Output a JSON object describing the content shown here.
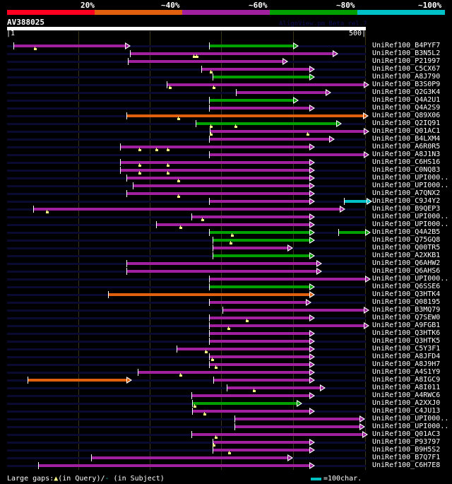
{
  "legend": {
    "labels": [
      "20%",
      "~40%",
      "~60%",
      "~80%",
      "~100%"
    ],
    "colors": [
      "#ff0020",
      "#e06010",
      "#a020a0",
      "#00a000",
      "#00c0c8"
    ]
  },
  "query": {
    "name": "AV388025",
    "start_label": "1",
    "end_label": "500",
    "length": 500
  },
  "credit": "AlignView.pm Beta rel.7",
  "identity_colors": {
    "red": "#ff0020",
    "orange": "#e06010",
    "purple": "#a020a0",
    "green": "#00a000",
    "cyan": "#00c0c8"
  },
  "hits": [
    {
      "label": "UniRef100_B4PYF7",
      "color": "green",
      "qs": 282,
      "qe": 400,
      "extra": [
        {
          "c": "purple",
          "s": 10,
          "e": 165
        }
      ],
      "gaps": [
        40
      ]
    },
    {
      "label": "UniRef100_B3N5L2",
      "color": "purple",
      "qs": 172,
      "qe": 455,
      "gaps": [
        262,
        266
      ]
    },
    {
      "label": "UniRef100_P21997",
      "color": "purple",
      "qs": 169,
      "qe": 385,
      "gaps": []
    },
    {
      "label": "UniRef100_C5CX67",
      "color": "purple",
      "qs": 272,
      "qe": 422,
      "gaps": [
        285
      ]
    },
    {
      "label": "UniRef100_A8J790",
      "color": "green",
      "qs": 287,
      "qe": 422,
      "gaps": []
    },
    {
      "label": "UniRef100_B3S0P9",
      "color": "purple",
      "qs": 223,
      "qe": 498,
      "gaps": [
        228,
        289
      ]
    },
    {
      "label": "UniRef100_Q2G3K4",
      "color": "purple",
      "qs": 320,
      "qe": 445,
      "gaps": []
    },
    {
      "label": "UniRef100_Q4A2U1",
      "color": "green",
      "qs": 282,
      "qe": 400,
      "gaps": []
    },
    {
      "label": "UniRef100_Q4A2S9",
      "color": "purple",
      "qs": 282,
      "qe": 422,
      "gaps": []
    },
    {
      "label": "UniRef100_Q89X06",
      "color": "orange",
      "qs": 167,
      "qe": 497,
      "gaps": [
        240
      ]
    },
    {
      "label": "UniRef100_Q2IQ91",
      "color": "green",
      "qs": 264,
      "qe": 460,
      "gaps": [
        285,
        320
      ]
    },
    {
      "label": "UniRef100_Q01AC1",
      "color": "purple",
      "qs": 283,
      "qe": 498,
      "gaps": [
        285,
        420
      ]
    },
    {
      "label": "UniRef100_B4LXM4",
      "color": "purple",
      "qs": 282,
      "qe": 450,
      "gaps": []
    },
    {
      "label": "UniRef100_A6R0R5",
      "color": "purple",
      "qs": 158,
      "qe": 422,
      "gaps": [
        186,
        210,
        225
      ]
    },
    {
      "label": "UniRef100_A8J1N3",
      "color": "purple",
      "qs": 282,
      "qe": 498,
      "gaps": []
    },
    {
      "label": "UniRef100_C6HS16",
      "color": "purple",
      "qs": 158,
      "qe": 422,
      "gaps": [
        186,
        225
      ]
    },
    {
      "label": "UniRef100_C0NQ83",
      "color": "purple",
      "qs": 158,
      "qe": 422,
      "gaps": [
        186,
        225
      ]
    },
    {
      "label": "UniRef100_UPI000..",
      "color": "purple",
      "qs": 167,
      "qe": 422,
      "gaps": [
        240
      ]
    },
    {
      "label": "UniRef100_UPI000..",
      "color": "purple",
      "qs": 176,
      "qe": 422,
      "gaps": []
    },
    {
      "label": "UniRef100_A7QNX2",
      "color": "purple",
      "qs": 167,
      "qe": 422,
      "gaps": [
        240
      ]
    },
    {
      "label": "UniRef100_C9J4Y2",
      "color": "cyan",
      "qs": 470,
      "qe": 502,
      "extra": [
        {
          "c": "purple",
          "s": 282,
          "e": 422
        }
      ],
      "gaps": []
    },
    {
      "label": "UniRef100_B9QEP3",
      "color": "purple",
      "qs": 37,
      "qe": 465,
      "gaps": [
        57
      ]
    },
    {
      "label": "UniRef100_UPI000..",
      "color": "purple",
      "qs": 258,
      "qe": 422,
      "gaps": [
        274
      ]
    },
    {
      "label": "UniRef100_UPI000..",
      "color": "purple",
      "qs": 209,
      "qe": 422,
      "gaps": [
        243
      ]
    },
    {
      "label": "UniRef100_Q4A2B5",
      "color": "green",
      "qs": 282,
      "qe": 422,
      "extra": [
        {
          "c": "green",
          "s": 463,
          "e": 500
        }
      ],
      "gaps": [
        315
      ]
    },
    {
      "label": "UniRef100_Q75GQ8",
      "color": "green",
      "qs": 287,
      "qe": 422,
      "gaps": [
        313
      ]
    },
    {
      "label": "UniRef100_Q00TR5",
      "color": "purple",
      "qs": 287,
      "qe": 392,
      "gaps": []
    },
    {
      "label": "UniRef100_A2XKB1",
      "color": "green",
      "qs": 287,
      "qe": 422,
      "gaps": []
    },
    {
      "label": "UniRef100_Q6AHW2",
      "color": "purple",
      "qs": 167,
      "qe": 432,
      "gaps": []
    },
    {
      "label": "UniRef100_Q6AHS6",
      "color": "purple",
      "qs": 167,
      "qe": 432,
      "gaps": []
    },
    {
      "label": "UniRef100_UPI000..",
      "color": "purple",
      "qs": 282,
      "qe": 500,
      "gaps": []
    },
    {
      "label": "UniRef100_Q6SSE6",
      "color": "green",
      "qs": 282,
      "qe": 422,
      "gaps": []
    },
    {
      "label": "UniRef100_Q3HTK4",
      "color": "orange",
      "qs": 142,
      "qe": 422,
      "gaps": []
    },
    {
      "label": "UniRef100_Q08195",
      "color": "purple",
      "qs": 282,
      "qe": 417,
      "gaps": []
    },
    {
      "label": "UniRef100_B3MQ79",
      "color": "purple",
      "qs": 301,
      "qe": 498,
      "gaps": []
    },
    {
      "label": "UniRef100_Q7SEW0",
      "color": "purple",
      "qs": 282,
      "qe": 422,
      "gaps": [
        336
      ]
    },
    {
      "label": "UniRef100_A9FGB1",
      "color": "purple",
      "qs": 282,
      "qe": 498,
      "gaps": [
        310
      ]
    },
    {
      "label": "UniRef100_Q3HTK6",
      "color": "purple",
      "qs": 282,
      "qe": 422,
      "gaps": []
    },
    {
      "label": "UniRef100_Q3HTK5",
      "color": "purple",
      "qs": 282,
      "qe": 422,
      "gaps": []
    },
    {
      "label": "UniRef100_C5Y3F1",
      "color": "purple",
      "qs": 237,
      "qe": 422,
      "gaps": [
        279
      ]
    },
    {
      "label": "UniRef100_A8JFD4",
      "color": "purple",
      "qs": 282,
      "qe": 422,
      "gaps": [
        287
      ]
    },
    {
      "label": "UniRef100_A8J9H7",
      "color": "purple",
      "qs": 282,
      "qe": 422,
      "gaps": [
        292
      ]
    },
    {
      "label": "UniRef100_A4S1Y9",
      "color": "purple",
      "qs": 183,
      "qe": 422,
      "gaps": [
        243
      ]
    },
    {
      "label": "UniRef100_A8IGC9",
      "color": "orange",
      "qs": 30,
      "qe": 167,
      "extra": [
        {
          "c": "purple",
          "s": 288,
          "e": 422
        }
      ],
      "gaps": []
    },
    {
      "label": "UniRef100_A8I011",
      "color": "purple",
      "qs": 307,
      "qe": 437,
      "gaps": [
        345
      ]
    },
    {
      "label": "UniRef100_A4RWC6",
      "color": "purple",
      "qs": 258,
      "qe": 422,
      "gaps": []
    },
    {
      "label": "UniRef100_A2XXJ0",
      "color": "green",
      "qs": 259,
      "qe": 405,
      "gaps": [
        263
      ]
    },
    {
      "label": "UniRef100_C4JU13",
      "color": "purple",
      "qs": 259,
      "qe": 422,
      "gaps": [
        277
      ]
    },
    {
      "label": "UniRef100_UPI000..",
      "color": "purple",
      "qs": 318,
      "qe": 492,
      "gaps": []
    },
    {
      "label": "UniRef100_UPI000..",
      "color": "purple",
      "qs": 318,
      "qe": 492,
      "gaps": []
    },
    {
      "label": "UniRef100_Q01AC3",
      "color": "purple",
      "qs": 258,
      "qe": 496,
      "gaps": [
        292
      ]
    },
    {
      "label": "UniRef100_P93797",
      "color": "purple",
      "qs": 287,
      "qe": 422,
      "gaps": [
        289
      ]
    },
    {
      "label": "UniRef100_B9H5S2",
      "color": "purple",
      "qs": 287,
      "qe": 422,
      "gaps": [
        311
      ]
    },
    {
      "label": "UniRef100_B7Q7F1",
      "color": "purple",
      "qs": 118,
      "qe": 392,
      "gaps": []
    },
    {
      "label": "UniRef100_C6H7E8",
      "color": "purple",
      "qs": 44,
      "qe": 422,
      "gaps": []
    }
  ],
  "footer": {
    "large_gaps_label": "Large gaps:",
    "in_query": "(in Query)/",
    "dash": "-",
    "in_subject": " (in Subject)",
    "scale_label": "=100char."
  }
}
